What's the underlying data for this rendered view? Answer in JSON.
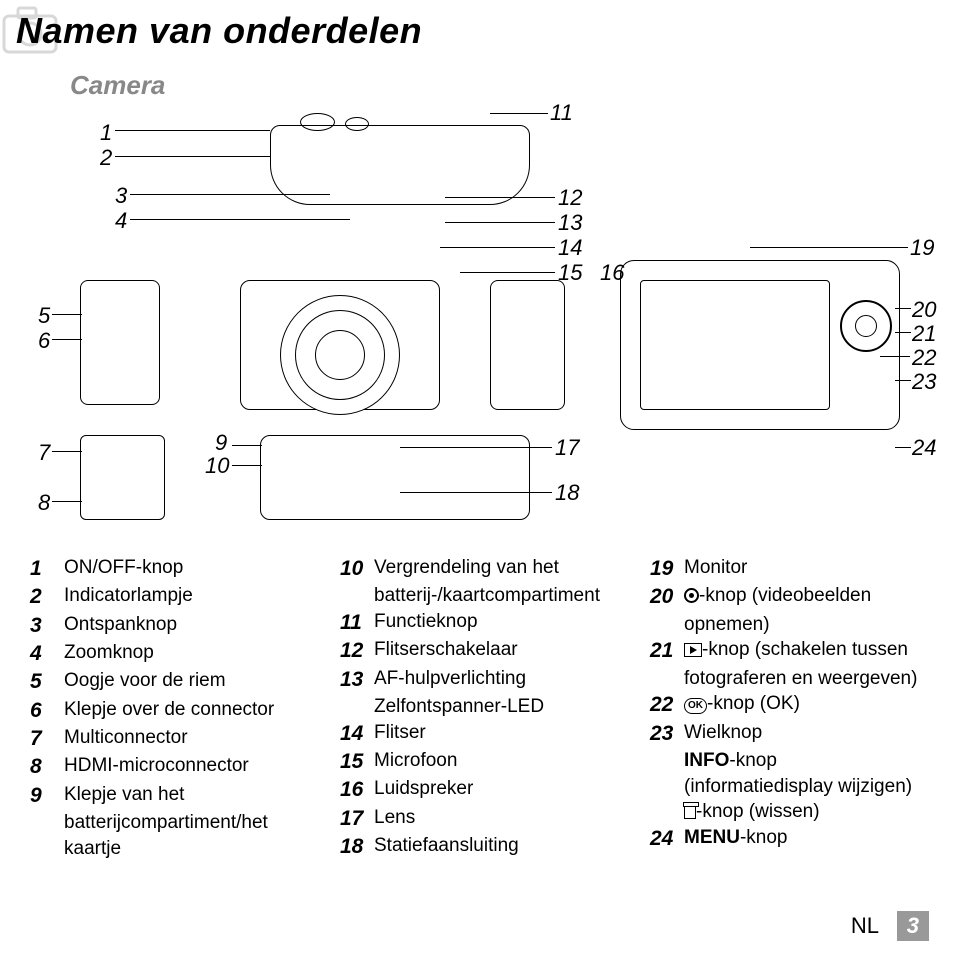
{
  "title": "Namen van onderdelen",
  "subtitle": "Camera",
  "callouts": {
    "c1": "1",
    "c2": "2",
    "c3": "3",
    "c4": "4",
    "c5": "5",
    "c6": "6",
    "c7": "7",
    "c8": "8",
    "c9": "9",
    "c10": "10",
    "c11": "11",
    "c12": "12",
    "c13": "13",
    "c14": "14",
    "c15": "15",
    "c16": "16",
    "c17": "17",
    "c18": "18",
    "c19": "19",
    "c20": "20",
    "c21": "21",
    "c22": "22",
    "c23": "23",
    "c24": "24"
  },
  "legend": {
    "col1": [
      {
        "n": "1",
        "t": "ON/OFF-knop"
      },
      {
        "n": "2",
        "t": "Indicatorlampje"
      },
      {
        "n": "3",
        "t": "Ontspanknop"
      },
      {
        "n": "4",
        "t": "Zoomknop"
      },
      {
        "n": "5",
        "t": "Oogje voor de riem"
      },
      {
        "n": "6",
        "t": "Klepje over de connector"
      },
      {
        "n": "7",
        "t": "Multiconnector"
      },
      {
        "n": "8",
        "t": "HDMI-microconnector"
      },
      {
        "n": "9",
        "t": "Klepje van het"
      },
      {
        "n": "",
        "t": "batterijcompartiment/het",
        "indent": true
      },
      {
        "n": "",
        "t": "kaartje",
        "indent": true
      }
    ],
    "col2": [
      {
        "n": "10",
        "t": "Vergrendeling van het"
      },
      {
        "n": "",
        "t": "batterij-/kaartcompartiment",
        "indent": true
      },
      {
        "n": "11",
        "t": "Functieknop"
      },
      {
        "n": "12",
        "t": "Flitserschakelaar"
      },
      {
        "n": "13",
        "t": "AF-hulpverlichting"
      },
      {
        "n": "",
        "t": "Zelfontspanner-LED",
        "indent": true
      },
      {
        "n": "14",
        "t": "Flitser"
      },
      {
        "n": "15",
        "t": "Microfoon"
      },
      {
        "n": "16",
        "t": "Luidspreker"
      },
      {
        "n": "17",
        "t": "Lens"
      },
      {
        "n": "18",
        "t": "Statiefaansluiting"
      }
    ],
    "col3": [
      {
        "n": "19",
        "t": "Monitor"
      },
      {
        "n": "20",
        "icon": "rec",
        "t": "-knop (videobeelden"
      },
      {
        "n": "",
        "t": "opnemen)",
        "indent": true
      },
      {
        "n": "21",
        "icon": "play",
        "t": "-knop (schakelen tussen"
      },
      {
        "n": "",
        "t": "fotograferen en weergeven)",
        "indent": true
      },
      {
        "n": "22",
        "icon": "ok",
        "t": "-knop (OK)"
      },
      {
        "n": "23",
        "t": "Wielknop"
      },
      {
        "n": "",
        "t": "INFO-knop",
        "indent": true,
        "bold": "INFO"
      },
      {
        "n": "",
        "t": "(informatiedisplay wijzigen)",
        "indent": true
      },
      {
        "n": "",
        "icon": "trash",
        "t": "-knop (wissen)",
        "indent": true
      },
      {
        "n": "24",
        "t": "MENU-knop",
        "bold": "MENU"
      }
    ]
  },
  "footer": {
    "lang": "NL",
    "page": "3"
  },
  "colors": {
    "text": "#000000",
    "muted": "#888888",
    "page_badge_bg": "#999999"
  }
}
